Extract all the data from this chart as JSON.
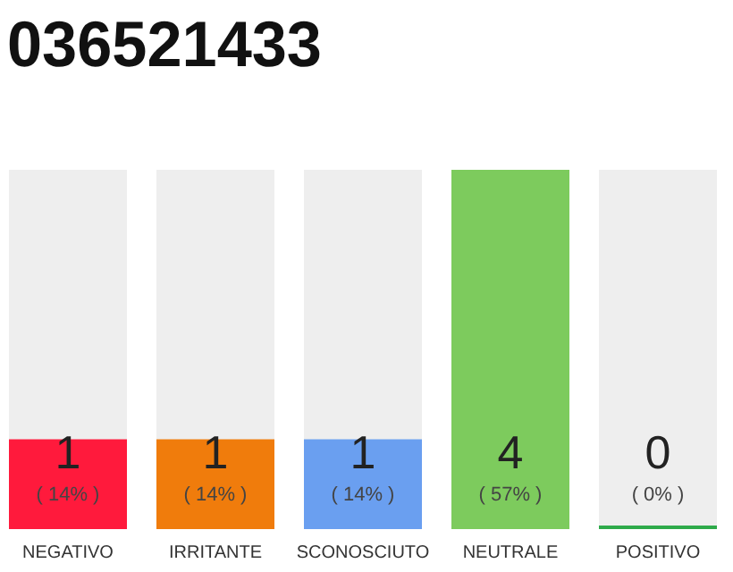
{
  "chart_data": {
    "type": "bar",
    "title": "036521433",
    "categories": [
      "NEGATIVO",
      "IRRITANTE",
      "SCONOSCIUTO",
      "NEUTRALE",
      "POSITIVO"
    ],
    "values": [
      1,
      1,
      1,
      4,
      0
    ],
    "colors": [
      "#ff1a3c",
      "#f07c0c",
      "#6a9ff0",
      "#7dcb5d",
      "#2eaa4a"
    ],
    "value_labels": [
      "1\n( 14% )",
      "1\n( 14% )",
      "1\n( 14% )",
      "4\n( 57% )",
      "0\n( 0% )"
    ],
    "ylim": [
      0,
      4
    ],
    "tick_labels": "x",
    "grid": false
  }
}
